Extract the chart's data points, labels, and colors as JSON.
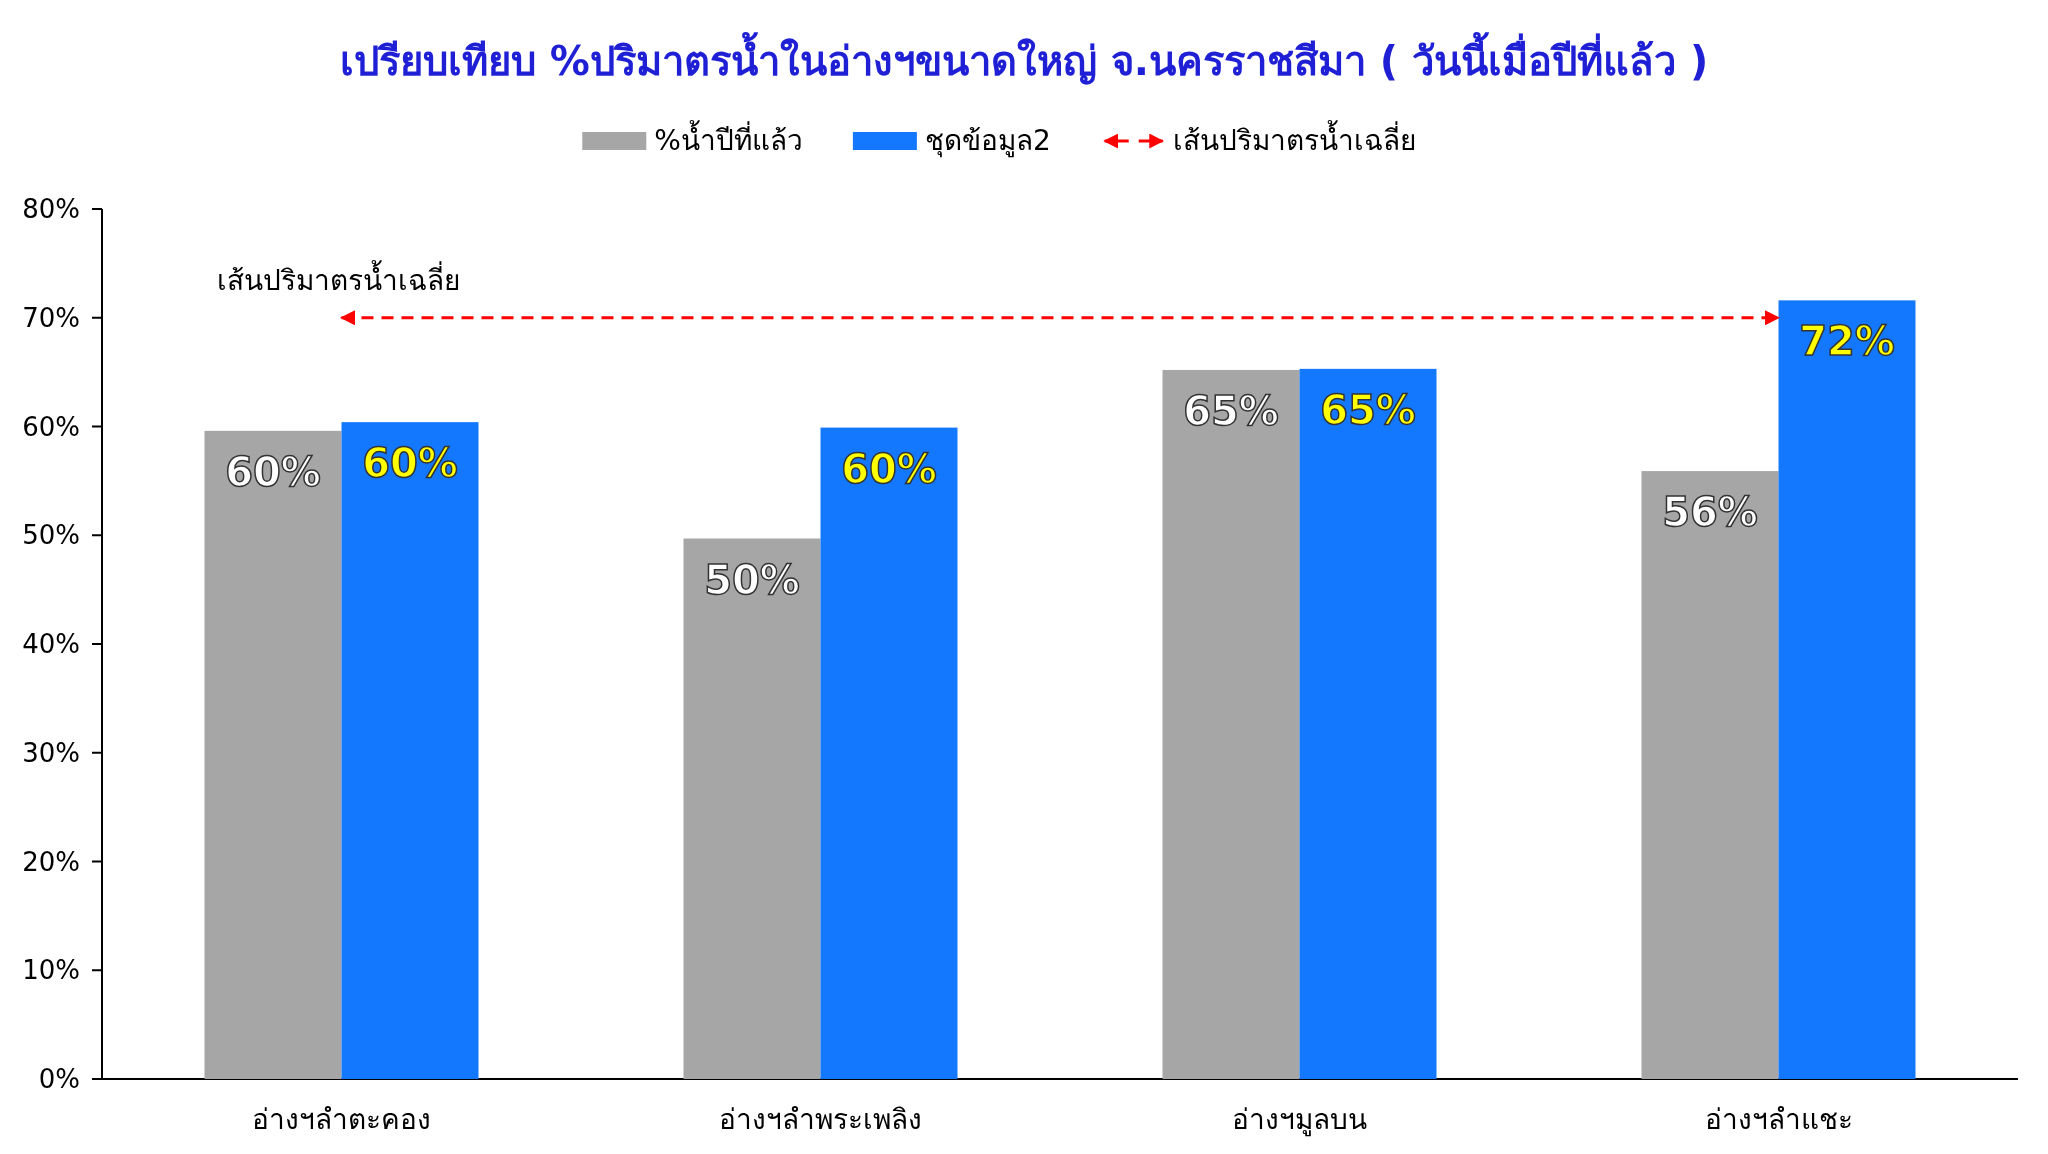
{
  "chart_data": {
    "type": "bar",
    "title": "เปรียบเทียบ %ปริมาตรน้ำในอ่างฯขนาดใหญ่ จ.นครราชสีมา ( วันนี้เมื่อปีที่แล้ว )",
    "categories": [
      "อ่างฯลำตะคอง",
      "อ่างฯลำพระเพลิง",
      "อ่างฯมูลบน",
      "อ่างฯลำแชะ"
    ],
    "series": [
      {
        "name": "%น้ำปีที่แล้ว",
        "color": "#a6a6a6",
        "values": [
          59.6,
          49.7,
          65.2,
          55.9
        ],
        "value_labels": [
          "60%",
          "50%",
          "65%",
          "56%"
        ]
      },
      {
        "name": "ชุดข้อมูล2",
        "color": "#1478ff",
        "values": [
          60.4,
          59.9,
          65.3,
          71.6
        ],
        "value_labels": [
          "60%",
          "60%",
          "65%",
          "72%"
        ]
      }
    ],
    "ylim": [
      0,
      80
    ],
    "yticks": [
      {
        "value": 0,
        "label": "0%"
      },
      {
        "value": 10,
        "label": "10%"
      },
      {
        "value": 20,
        "label": "20%"
      },
      {
        "value": 30,
        "label": "30%"
      },
      {
        "value": 40,
        "label": "40%"
      },
      {
        "value": 50,
        "label": "50%"
      },
      {
        "value": 60,
        "label": "60%"
      },
      {
        "value": 70,
        "label": "70%"
      },
      {
        "value": 80,
        "label": "80%"
      }
    ],
    "ref_lines": [
      {
        "axis": "y",
        "value": 70,
        "label": "เส้นปริมาตรน้ำเฉลี่ย",
        "color": "#ff0000",
        "line_style": "dashed"
      }
    ],
    "legend": "top",
    "grid": false
  }
}
